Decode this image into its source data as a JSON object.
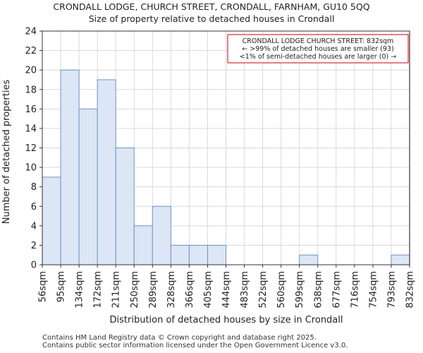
{
  "chart_data": {
    "type": "bar",
    "title": "CRONDALL LODGE, CHURCH STREET, CRONDALL, FARNHAM, GU10 5QQ",
    "subtitle": "Size of property relative to detached houses in Crondall",
    "xlabel": "Distribution of detached houses by size in Crondall",
    "ylabel": "Number of detached properties",
    "bin_edges": [
      "56sqm",
      "95sqm",
      "134sqm",
      "172sqm",
      "211sqm",
      "250sqm",
      "289sqm",
      "328sqm",
      "366sqm",
      "405sqm",
      "444sqm",
      "483sqm",
      "522sqm",
      "560sqm",
      "599sqm",
      "638sqm",
      "677sqm",
      "716sqm",
      "754sqm",
      "793sqm",
      "832sqm"
    ],
    "values": [
      9,
      20,
      16,
      19,
      12,
      4,
      6,
      2,
      2,
      2,
      0,
      0,
      0,
      0,
      1,
      0,
      0,
      0,
      0,
      1
    ],
    "ylim": [
      0,
      24
    ],
    "yticks": [
      0,
      2,
      4,
      6,
      8,
      10,
      12,
      14,
      16,
      18,
      20,
      22,
      24
    ],
    "grid": true,
    "bar_color": "#dce6f5",
    "bar_edge_color": "#6f93c8",
    "marker": {
      "value_label": "832sqm",
      "color": "#cc0000",
      "annotation_lines": [
        "CRONDALL LODGE CHURCH STREET: 832sqm",
        "← >99% of detached houses are smaller (93)",
        "<1% of semi-detached houses are larger (0) →"
      ]
    }
  },
  "footer": {
    "line1": "Contains HM Land Registry data © Crown copyright and database right 2025.",
    "line2": "Contains public sector information licensed under the Open Government Licence v3.0."
  }
}
